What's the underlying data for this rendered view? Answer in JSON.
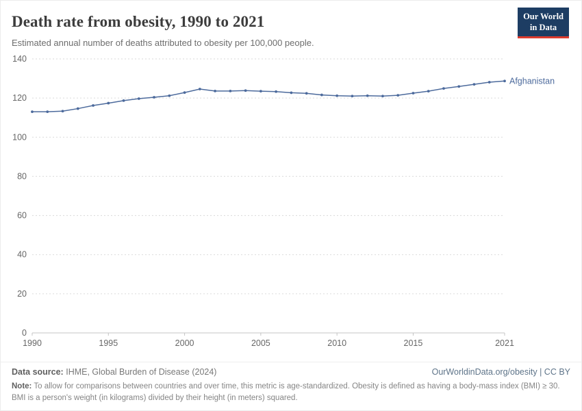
{
  "header": {
    "title": "Death rate from obesity, 1990 to 2021",
    "subtitle": "Estimated annual number of deaths attributed to obesity per 100,000 people.",
    "logo": {
      "line1": "Our World",
      "line2": "in Data"
    }
  },
  "chart_data": {
    "type": "line",
    "title": "Death rate from obesity, 1990 to 2021",
    "xlabel": "",
    "ylabel": "Estimated annual deaths attributed to obesity per 100,000 people",
    "ylim": [
      0,
      140
    ],
    "yticks": [
      0,
      20,
      40,
      60,
      80,
      100,
      120,
      140
    ],
    "xticks": [
      1990,
      1995,
      2000,
      2005,
      2010,
      2015,
      2021
    ],
    "grid": "dashed horizontal gridlines",
    "legend": "entity label at end of line",
    "x": [
      1990,
      1991,
      1992,
      1993,
      1994,
      1995,
      1996,
      1997,
      1998,
      1999,
      2000,
      2001,
      2002,
      2003,
      2004,
      2005,
      2006,
      2007,
      2008,
      2009,
      2010,
      2011,
      2012,
      2013,
      2014,
      2015,
      2016,
      2017,
      2018,
      2019,
      2020,
      2021
    ],
    "series": [
      {
        "name": "Afghanistan",
        "color": "#4c6a9c",
        "values": [
          113.0,
          113.0,
          113.3,
          114.6,
          116.2,
          117.4,
          118.7,
          119.7,
          120.4,
          121.2,
          122.8,
          124.6,
          123.6,
          123.6,
          123.8,
          123.5,
          123.3,
          122.7,
          122.4,
          121.6,
          121.2,
          121.0,
          121.2,
          121.0,
          121.4,
          122.5,
          123.5,
          124.9,
          125.9,
          127.0,
          128.1,
          128.7
        ]
      }
    ]
  },
  "footer": {
    "source_label": "Data source:",
    "source_text": "IHME, Global Burden of Disease (2024)",
    "credit": "OurWorldinData.org/obesity | CC BY",
    "note_label": "Note:",
    "note_text": "To allow for comparisons between countries and over time, this metric is age-standardized. Obesity is defined as having a body-mass index (BMI) ≥ 30. BMI is a person's weight (in kilograms) divided by their height (in meters) squared."
  },
  "colors": {
    "line": "#4c6a9c",
    "logo_bg": "#1d3d63",
    "logo_accent": "#dc3b2e",
    "gridline": "#dadada",
    "axis_text": "#666666"
  }
}
